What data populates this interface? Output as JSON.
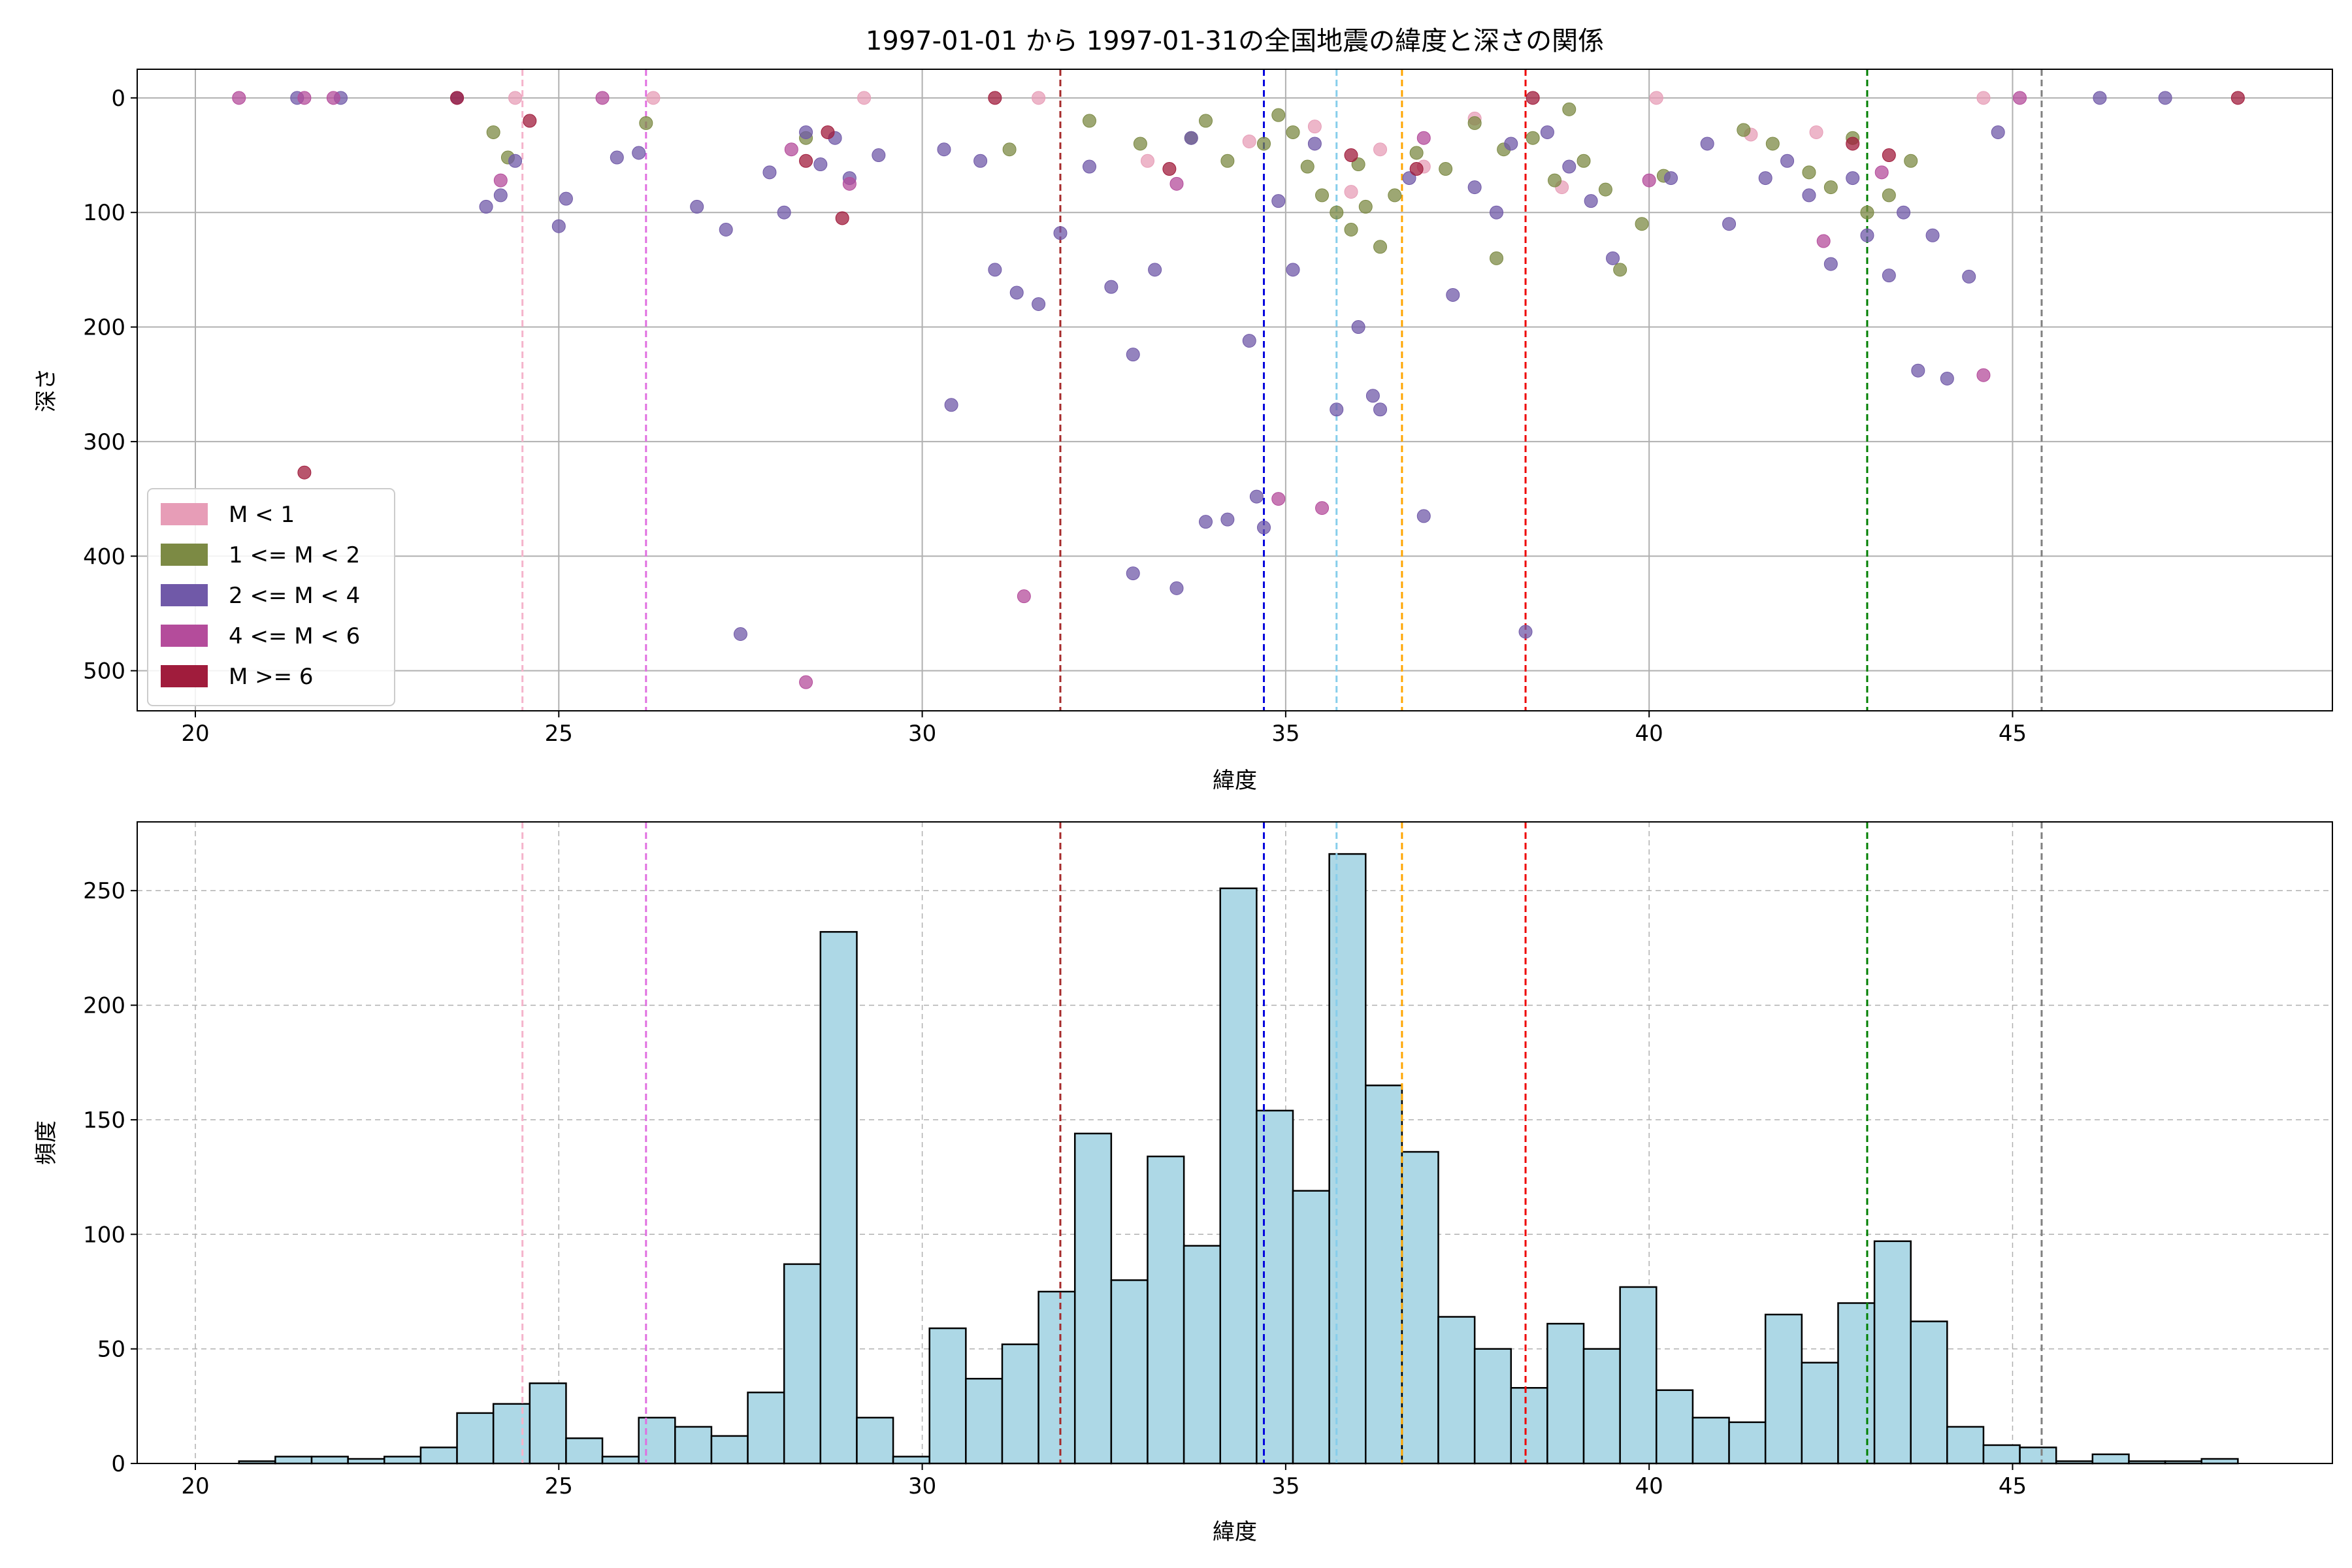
{
  "figure": {
    "title": "1997-01-01 から 1997-01-31の全国地震の緯度と深さの関係"
  },
  "chart_data": [
    {
      "type": "scatter",
      "xlabel": "緯度",
      "ylabel": "深さ",
      "xlim": [
        19.2,
        49.4
      ],
      "ylim": [
        535,
        -25
      ],
      "y_inverted": true,
      "grid": true,
      "xticks": [
        "20",
        "25",
        "30",
        "35",
        "40",
        "45"
      ],
      "yticks": [
        "0",
        "100",
        "200",
        "300",
        "400",
        "500"
      ],
      "legend_position": "lower-left",
      "series": [
        {
          "name": "M < 1",
          "color": "#e79db7",
          "points": [
            [
              24.4,
              0
            ],
            [
              26.3,
              0
            ],
            [
              31.6,
              0
            ],
            [
              33.1,
              55
            ],
            [
              34.5,
              38
            ],
            [
              35.4,
              25
            ],
            [
              36.3,
              45
            ],
            [
              36.9,
              60
            ],
            [
              37.6,
              18
            ],
            [
              38.8,
              78
            ],
            [
              40.1,
              0
            ],
            [
              41.4,
              32
            ],
            [
              42.3,
              30
            ],
            [
              44.6,
              0
            ],
            [
              29.2,
              0
            ],
            [
              35.9,
              82
            ]
          ]
        },
        {
          "name": "1 <= M < 2",
          "color": "#7c8a44",
          "points": [
            [
              24.1,
              30
            ],
            [
              24.3,
              52
            ],
            [
              26.2,
              22
            ],
            [
              28.4,
              35
            ],
            [
              31.2,
              45
            ],
            [
              32.3,
              20
            ],
            [
              33.0,
              40
            ],
            [
              33.7,
              35
            ],
            [
              34.2,
              55
            ],
            [
              34.7,
              40
            ],
            [
              35.1,
              30
            ],
            [
              35.3,
              60
            ],
            [
              35.5,
              85
            ],
            [
              35.7,
              100
            ],
            [
              35.9,
              115
            ],
            [
              36.1,
              95
            ],
            [
              36.3,
              130
            ],
            [
              36.5,
              85
            ],
            [
              36.8,
              48
            ],
            [
              37.2,
              62
            ],
            [
              37.6,
              22
            ],
            [
              38.0,
              45
            ],
            [
              38.4,
              35
            ],
            [
              38.7,
              72
            ],
            [
              39.1,
              55
            ],
            [
              39.4,
              80
            ],
            [
              39.6,
              150
            ],
            [
              39.9,
              110
            ],
            [
              40.2,
              68
            ],
            [
              41.3,
              28
            ],
            [
              41.7,
              40
            ],
            [
              42.2,
              65
            ],
            [
              42.5,
              78
            ],
            [
              42.8,
              35
            ],
            [
              43.0,
              100
            ],
            [
              43.3,
              85
            ],
            [
              43.6,
              55
            ],
            [
              33.9,
              20
            ],
            [
              34.9,
              15
            ],
            [
              36.0,
              58
            ],
            [
              37.9,
              140
            ],
            [
              38.9,
              10
            ]
          ]
        },
        {
          "name": "2 <= M < 4",
          "color": "#7059a8",
          "points": [
            [
              23.6,
              0
            ],
            [
              24.0,
              95
            ],
            [
              24.2,
              85
            ],
            [
              24.4,
              55
            ],
            [
              25.0,
              112
            ],
            [
              25.1,
              88
            ],
            [
              25.8,
              52
            ],
            [
              26.1,
              48
            ],
            [
              26.9,
              95
            ],
            [
              27.3,
              115
            ],
            [
              27.5,
              468
            ],
            [
              27.9,
              65
            ],
            [
              28.1,
              100
            ],
            [
              28.4,
              30
            ],
            [
              28.6,
              58
            ],
            [
              28.8,
              35
            ],
            [
              29.0,
              70
            ],
            [
              29.4,
              50
            ],
            [
              30.3,
              45
            ],
            [
              30.4,
              268
            ],
            [
              30.8,
              55
            ],
            [
              31.0,
              150
            ],
            [
              31.3,
              170
            ],
            [
              31.6,
              180
            ],
            [
              31.9,
              118
            ],
            [
              32.3,
              60
            ],
            [
              32.6,
              165
            ],
            [
              32.9,
              224
            ],
            [
              32.9,
              415
            ],
            [
              33.2,
              150
            ],
            [
              33.5,
              428
            ],
            [
              33.7,
              35
            ],
            [
              33.9,
              370
            ],
            [
              34.2,
              368
            ],
            [
              34.5,
              212
            ],
            [
              34.6,
              348
            ],
            [
              34.7,
              375
            ],
            [
              34.9,
              90
            ],
            [
              35.1,
              150
            ],
            [
              35.4,
              40
            ],
            [
              35.7,
              272
            ],
            [
              36.0,
              200
            ],
            [
              36.2,
              260
            ],
            [
              36.3,
              272
            ],
            [
              36.7,
              70
            ],
            [
              36.9,
              365
            ],
            [
              37.3,
              172
            ],
            [
              37.6,
              78
            ],
            [
              37.9,
              100
            ],
            [
              38.1,
              40
            ],
            [
              38.3,
              466
            ],
            [
              38.6,
              30
            ],
            [
              38.9,
              60
            ],
            [
              39.2,
              90
            ],
            [
              39.5,
              140
            ],
            [
              40.3,
              70
            ],
            [
              40.8,
              40
            ],
            [
              41.1,
              110
            ],
            [
              41.6,
              70
            ],
            [
              41.9,
              55
            ],
            [
              42.2,
              85
            ],
            [
              42.5,
              145
            ],
            [
              42.8,
              70
            ],
            [
              43.0,
              120
            ],
            [
              43.3,
              155
            ],
            [
              43.5,
              100
            ],
            [
              43.7,
              238
            ],
            [
              43.9,
              120
            ],
            [
              44.1,
              245
            ],
            [
              44.4,
              156
            ],
            [
              44.8,
              30
            ],
            [
              46.2,
              0
            ],
            [
              47.1,
              0
            ],
            [
              22.0,
              0
            ],
            [
              21.4,
              0
            ]
          ]
        },
        {
          "name": "4 <= M < 6",
          "color": "#b44c9b",
          "points": [
            [
              20.6,
              0
            ],
            [
              21.5,
              0
            ],
            [
              21.9,
              0
            ],
            [
              24.2,
              72
            ],
            [
              25.6,
              0
            ],
            [
              28.4,
              510
            ],
            [
              29.0,
              75
            ],
            [
              31.4,
              435
            ],
            [
              33.5,
              75
            ],
            [
              34.9,
              350
            ],
            [
              35.5,
              358
            ],
            [
              36.9,
              35
            ],
            [
              40.0,
              72
            ],
            [
              42.4,
              125
            ],
            [
              43.2,
              65
            ],
            [
              44.6,
              242
            ],
            [
              45.1,
              0
            ],
            [
              28.2,
              45
            ]
          ]
        },
        {
          "name": "M >= 6",
          "color": "#a01c3c",
          "points": [
            [
              21.5,
              327
            ],
            [
              23.6,
              0
            ],
            [
              24.6,
              20
            ],
            [
              28.4,
              55
            ],
            [
              28.9,
              105
            ],
            [
              33.4,
              62
            ],
            [
              35.9,
              50
            ],
            [
              36.8,
              62
            ],
            [
              42.8,
              40
            ],
            [
              43.3,
              50
            ],
            [
              48.1,
              0
            ],
            [
              31.0,
              0
            ],
            [
              38.4,
              0
            ],
            [
              28.7,
              30
            ]
          ]
        }
      ],
      "vlines": [
        {
          "x": 24.5,
          "color": "#f5b4cb"
        },
        {
          "x": 26.2,
          "color": "#e070e0"
        },
        {
          "x": 31.9,
          "color": "#a52a2a"
        },
        {
          "x": 34.7,
          "color": "#0000dd"
        },
        {
          "x": 35.7,
          "color": "#87ceeb"
        },
        {
          "x": 36.6,
          "color": "#ffa500"
        },
        {
          "x": 38.3,
          "color": "#ee0000"
        },
        {
          "x": 43.0,
          "color": "#008000"
        },
        {
          "x": 45.4,
          "color": "#808080"
        }
      ]
    },
    {
      "type": "bar",
      "xlabel": "緯度",
      "ylabel": "頻度",
      "xlim": [
        19.2,
        49.4
      ],
      "ylim": [
        0,
        280
      ],
      "grid": true,
      "bar_color": "#add8e6",
      "edge_color": "#000000",
      "xticks": [
        "20",
        "25",
        "30",
        "35",
        "40",
        "45"
      ],
      "yticks": [
        "0",
        "50",
        "100",
        "150",
        "200",
        "250"
      ],
      "bin_start": 20.6,
      "bin_width": 0.5,
      "values": [
        1,
        3,
        3,
        2,
        3,
        7,
        22,
        26,
        35,
        11,
        3,
        20,
        16,
        12,
        31,
        87,
        232,
        20,
        3,
        59,
        37,
        52,
        75,
        144,
        80,
        134,
        95,
        251,
        154,
        119,
        266,
        165,
        136,
        64,
        50,
        33,
        61,
        50,
        77,
        32,
        20,
        18,
        65,
        44,
        70,
        97,
        62,
        16,
        8,
        7,
        1,
        4,
        1,
        1,
        2
      ],
      "vlines": [
        {
          "x": 24.5,
          "color": "#f5b4cb"
        },
        {
          "x": 26.2,
          "color": "#e070e0"
        },
        {
          "x": 31.9,
          "color": "#a52a2a"
        },
        {
          "x": 34.7,
          "color": "#0000dd"
        },
        {
          "x": 35.7,
          "color": "#87ceeb"
        },
        {
          "x": 36.6,
          "color": "#ffa500"
        },
        {
          "x": 38.3,
          "color": "#ee0000"
        },
        {
          "x": 43.0,
          "color": "#008000"
        },
        {
          "x": 45.4,
          "color": "#808080"
        }
      ]
    }
  ]
}
